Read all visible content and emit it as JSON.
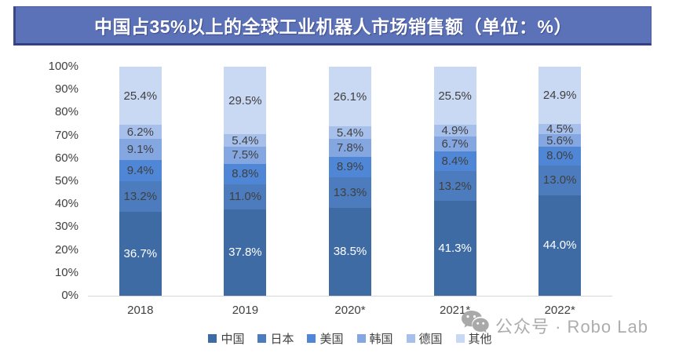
{
  "title": {
    "text": "中国占35%以上的全球工业机器人市场销售额（单位：%）",
    "background_color": "#5B71B8",
    "text_color": "#FFFFFF"
  },
  "watermark": {
    "icon": "wechat-icon",
    "text": "公众号 · Robo Lab",
    "color": "#ADADAD"
  },
  "chart_data": {
    "type": "bar",
    "stacked": true,
    "orientation": "vertical",
    "categories": [
      "2018",
      "2019",
      "2020*",
      "2021*",
      "2022*"
    ],
    "series": [
      {
        "name": "中国",
        "color": "#3F6BA5",
        "label_color": "#FFFFFF",
        "values": [
          36.7,
          37.8,
          38.5,
          41.3,
          44.0
        ]
      },
      {
        "name": "日本",
        "color": "#4C7CBE",
        "label_color": "#404040",
        "values": [
          13.2,
          11.0,
          13.3,
          13.2,
          13.0
        ]
      },
      {
        "name": "美国",
        "color": "#4F86D6",
        "label_color": "#404040",
        "values": [
          9.4,
          8.8,
          8.9,
          8.4,
          8.0
        ]
      },
      {
        "name": "韩国",
        "color": "#84A7E2",
        "label_color": "#404040",
        "values": [
          9.1,
          7.5,
          7.8,
          6.7,
          5.6
        ]
      },
      {
        "name": "德国",
        "color": "#A6C0EB",
        "label_color": "#404040",
        "values": [
          6.2,
          5.4,
          5.4,
          4.9,
          4.5
        ]
      },
      {
        "name": "其他",
        "color": "#C9D8F3",
        "label_color": "#404040",
        "values": [
          25.4,
          29.5,
          26.1,
          25.5,
          24.9
        ]
      }
    ],
    "y_ticks": [
      "100%",
      "90%",
      "80%",
      "70%",
      "60%",
      "50%",
      "40%",
      "30%",
      "20%",
      "10%",
      "0%"
    ],
    "ylim": [
      0,
      100
    ],
    "grid": false,
    "legend_position": "bottom",
    "value_suffix": "%",
    "value_decimals": 1
  }
}
